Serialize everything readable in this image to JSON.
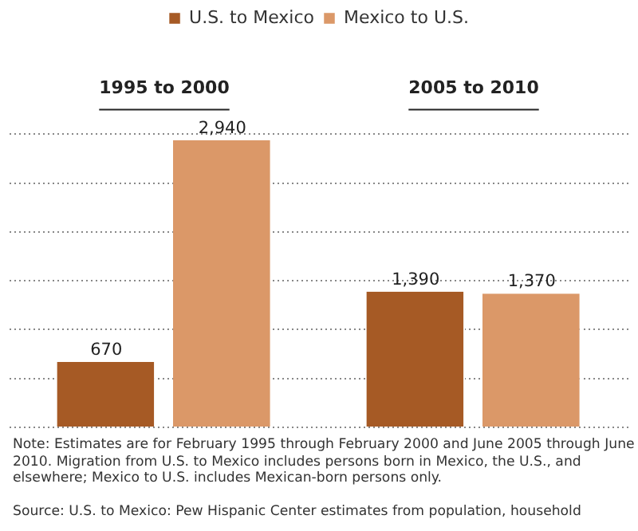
{
  "chart_data": {
    "type": "bar",
    "categories": [
      "1995 to 2000",
      "2005 to 2010"
    ],
    "series": [
      {
        "name": "U.S. to Mexico",
        "color": "#a65a25",
        "values": [
          670,
          1390
        ],
        "value_labels": [
          "670",
          "1,390"
        ]
      },
      {
        "name": "Mexico to U.S.",
        "color": "#db9868",
        "values": [
          2940,
          1370
        ],
        "value_labels": [
          "2,940",
          "1,370"
        ]
      }
    ],
    "ylim": [
      0,
      3000
    ],
    "yticks": [
      {
        "value": 0,
        "label": null
      },
      {
        "value": 500,
        "label": null
      },
      {
        "value": 1000,
        "label": null
      },
      {
        "value": 1500,
        "label": null
      },
      {
        "value": 2000,
        "label": null
      },
      {
        "value": 2500,
        "label": null
      },
      {
        "value": 3000,
        "label": null
      }
    ],
    "grid": "y",
    "legend": "top",
    "tick_labels": "x",
    "annotations": [
      "Note: Estimates are for February 1995 through February 2000 and June 2005 through June 2010.  Migration from U.S. to Mexico includes persons born in Mexico, the U.S., and elsewhere; Mexico to U.S. includes Mexican-born persons only.",
      "Source: U.S. to Mexico: Pew Hispanic Center estimates from population, household"
    ]
  }
}
